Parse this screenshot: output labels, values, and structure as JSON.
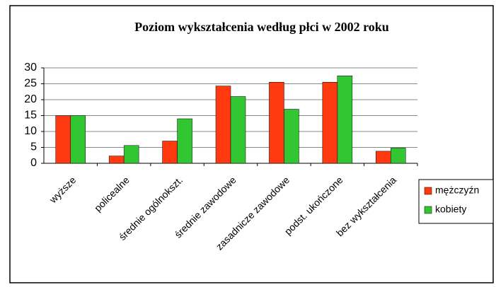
{
  "chart_data": {
    "type": "bar",
    "title": "Poziom wykształcenia według płci w 2002 roku",
    "categories": [
      "wyższe",
      "policealne",
      "średnie ogólnokszt.",
      "średnie zawodowe",
      "zasadnicze zawodowe",
      "podst. ukończone",
      "bez wykształcenia"
    ],
    "series": [
      {
        "name": "mężczyźn",
        "color": "#ff3a10",
        "values": [
          15,
          2.3,
          7,
          24.3,
          25.5,
          25.5,
          3.8
        ]
      },
      {
        "name": "kobiety",
        "color": "#33c633",
        "values": [
          15,
          5.6,
          14,
          21,
          17,
          27.5,
          4.8
        ]
      }
    ],
    "ylim": [
      0,
      30
    ],
    "yticks": [
      0,
      5,
      10,
      15,
      20,
      25,
      30
    ],
    "grid": true,
    "legend": "right"
  }
}
